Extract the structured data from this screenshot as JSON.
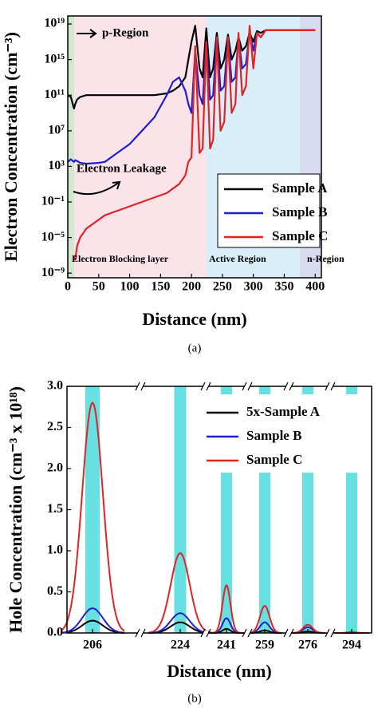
{
  "chart_data": [
    {
      "type": "line",
      "log_y": true,
      "x_label": "Distance (nm)",
      "y_label": "Electron Concentration (cm⁻³)",
      "caption": "(a)",
      "annotations": [
        "p-Region",
        "Electron Leakage",
        "Electron Blocking layer",
        "Active Region",
        "n-Region"
      ],
      "xlim": [
        0,
        410
      ],
      "xticks": [
        0,
        50,
        100,
        150,
        200,
        250,
        300,
        350,
        400
      ],
      "ylim": [
        3e-10,
        8e+19
      ],
      "yticks": [
        {
          "value": 1e+19,
          "label": "10¹⁹"
        },
        {
          "value": 1000000000000000.0,
          "label": "10¹⁵"
        },
        {
          "value": 100000000000.0,
          "label": "10¹¹"
        },
        {
          "value": 10000000.0,
          "label": "10⁷"
        },
        {
          "value": 1000.0,
          "label": "10³"
        },
        {
          "value": 0.1,
          "label": "10⁻¹"
        },
        {
          "value": 1e-05,
          "label": "10⁻⁵"
        },
        {
          "value": 1e-09,
          "label": "10⁻⁹"
        }
      ],
      "legend": "lower right",
      "x": [
        0,
        5,
        8,
        10,
        12,
        15,
        20,
        30,
        50,
        60,
        80,
        100,
        120,
        140,
        160,
        170,
        180,
        190,
        195,
        200,
        206,
        213,
        218,
        224,
        230,
        235,
        241,
        247,
        253,
        259,
        265,
        271,
        276,
        282,
        288,
        294,
        300,
        306,
        312,
        320,
        330,
        360,
        400
      ],
      "series": [
        {
          "name": "Sample A",
          "color": "#000000",
          "values": [
            100000000000.0,
            63000000000.0,
            10000000000.0,
            3200000000.0,
            10000000000.0,
            32000000000.0,
            63000000000.0,
            100000000000.0,
            100000000000.0,
            100000000000.0,
            100000000000.0,
            100000000000.0,
            100000000000.0,
            100000000000.0,
            160000000000.0,
            320000000000.0,
            1000000000000.0,
            10000000000000.0,
            1000000000000000.0,
            1e+17,
            6.3e+18,
            100000000000000.0,
            10000000000000.0,
            3.2e+18,
            10000000000000.0,
            100000000000000.0,
            1e+18,
            100000000000000.0,
            1000000000000000.0,
            6.3e+17,
            1000000000000000.0,
            1e+16,
            3.2e+17,
            1e+16,
            3.2e+16,
            1e+18,
            1e+17,
            1.6e+18,
            1e+18,
            2e+18,
            2e+18,
            2e+18,
            2e+18
          ]
        },
        {
          "name": "Sample B",
          "color": "#1f1fd0",
          "values": [
            3200,
            6300,
            4000,
            3200,
            5000,
            4000,
            2500,
            2000,
            2500,
            3200,
            32000,
            320000,
            10000000.0,
            320000000.0,
            100000000000.0,
            3200000000000.0,
            10000000000000.0,
            320000000000.0,
            10000000000.0,
            1000000000.0,
            1e+16,
            100000000000.0,
            10000000000.0,
            1e+17,
            32000000000.0,
            100000000000.0,
            3.2e+17,
            320000000000.0,
            1000000000000.0,
            3.2e+17,
            3200000000000.0,
            10000000000000.0,
            3.2e+17,
            100000000000000.0,
            320000000000000.0,
            1e+18,
            1e+16,
            1e+18,
            3.2e+17,
            2e+18,
            2e+18,
            2e+18,
            2e+18
          ]
        },
        {
          "name": "Sample C",
          "color": "#e02424",
          "values": [
            null,
            null,
            null,
            1e-07,
            3.2e-08,
            1e-06,
            1e-05,
            0.0001,
            0.001,
            0.0032,
            0.01,
            0.032,
            0.1,
            0.32,
            1,
            3.2,
            10,
            100,
            3200,
            10000,
            3.2e+16,
            32000,
            100000,
            1e+17,
            100000,
            1000000.0,
            3.2e+17,
            10000000.0,
            100000000.0,
            3.2e+17,
            1000000000.0,
            10000000000.0,
            1e+18,
            100000000000.0,
            1000000000000.0,
            6.3e+18,
            100000000000000.0,
            1e+18,
            3.2e+17,
            2e+18,
            2e+18,
            2e+18,
            2e+18
          ]
        }
      ]
    },
    {
      "type": "peaks",
      "x_label": "Distance (nm)",
      "y_label": "Hole Concentration (cm⁻³ x 10¹⁸)",
      "caption": "(b)",
      "categories": [
        "206",
        "224",
        "241",
        "259",
        "276",
        "294"
      ],
      "ylim": [
        0,
        3
      ],
      "yticks": [
        {
          "value": 0,
          "label": "0.0"
        },
        {
          "value": 0.5,
          "label": "0.5"
        },
        {
          "value": 1,
          "label": "1.0"
        },
        {
          "value": 1.5,
          "label": "1.5"
        },
        {
          "value": 2,
          "label": "2.0"
        },
        {
          "value": 2.5,
          "label": "2.5"
        },
        {
          "value": 3,
          "label": "3.0"
        }
      ],
      "legend": "upper right",
      "series": [
        {
          "name": "5x-Sample A",
          "color": "#000000",
          "values": [
            0.15,
            0.13,
            0.05,
            0.03,
            0.02,
            0
          ]
        },
        {
          "name": "Sample B",
          "color": "#1f1fd0",
          "values": [
            0.3,
            0.24,
            0.18,
            0.13,
            0.07,
            0.01
          ]
        },
        {
          "name": "Sample C",
          "color": "#e02424",
          "values": [
            2.8,
            0.97,
            0.58,
            0.33,
            0.1,
            0.01
          ]
        }
      ]
    }
  ]
}
